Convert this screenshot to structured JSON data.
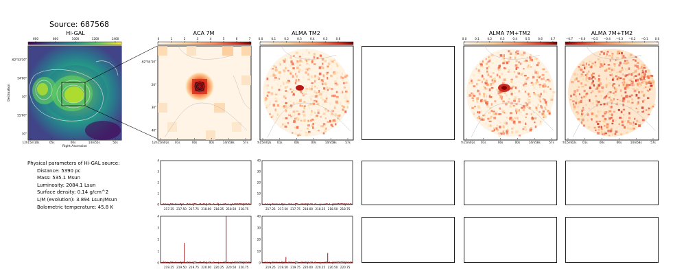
{
  "source_title": "Source: 687568",
  "panels": {
    "higal": {
      "title": "Hi-GAL",
      "cbar_ticks": [
        "600",
        "800",
        "1000",
        "1200",
        "1400"
      ],
      "yticks": [
        "-62°53'30\"",
        "54'00\"",
        "30\"",
        "55'00\"",
        "30\""
      ],
      "xticks": [
        "12h15m10s",
        "05s",
        "00s",
        "14m55s",
        "50s"
      ],
      "xlabel": "Right Ascension",
      "ylabel": "Declination",
      "colormap": "viridis"
    },
    "aca7m": {
      "title": "ACA 7M",
      "cbar_ticks": [
        "0",
        "1",
        "2",
        "3",
        "4",
        "5",
        "6",
        "7"
      ],
      "yticks": [
        "-62°54'10\"",
        "20\"",
        "30\"",
        "40\""
      ],
      "xticks": [
        "12h15m02s",
        "01s",
        "00s",
        "00s",
        "14m58s",
        "57s"
      ],
      "colormap": "OrRd"
    },
    "almatm2": {
      "title": "ALMA TM2",
      "cbar_ticks": [
        "0.0",
        "0.1",
        "0.2",
        "0.3",
        "0.4",
        "0.5",
        "0.6"
      ],
      "xticks": [
        "12h15m02s",
        "01s",
        "00s",
        "00s",
        "14m58s",
        "57s"
      ]
    },
    "alma7mtm2_a": {
      "title": "ALMA 7M+TM2",
      "cbar_ticks": [
        "0.0",
        "0.1",
        "0.2",
        "0.3",
        "0.4",
        "0.5",
        "0.6",
        "0.7"
      ],
      "xticks": [
        "12h15m02s",
        "01s",
        "00s",
        "00s",
        "14m58s",
        "57s"
      ]
    },
    "alma7mtm2_b": {
      "title": "ALMA 7M+TM2",
      "cbar_ticks": [
        "−0.7",
        "−0.6",
        "−0.5",
        "−0.4",
        "−0.3",
        "−0.2",
        "−0.1",
        "0.0"
      ],
      "xticks": [
        "12h15m02s",
        "01s",
        "00s",
        "00s",
        "14m58s",
        "57s"
      ]
    }
  },
  "physical_parameters": {
    "heading": "Physical parameters of Hi-GAL source:",
    "distance": "Distance: 5390 pc",
    "mass": "Mass: 535.1 Msun",
    "luminosity": "Luminosity: 2084.1 Lsun",
    "surface_density": "Surface density: 0.14 g/cm^2",
    "lm": "L/M (evolution): 3.894 Lsun/Msun",
    "tbol": "Bolometric temperature: 45.8 K"
  },
  "chart_data": [
    {
      "type": "line",
      "name": "spectrum-aca-row1",
      "x_ticks": [
        "217.25",
        "217.50",
        "217.75",
        "218.00",
        "218.25",
        "218.50",
        "218.75"
      ],
      "ylim": [
        0,
        4
      ],
      "y_ticks": [
        "0",
        "1",
        "2",
        "3",
        "4"
      ],
      "xlim": [
        217.08,
        218.9
      ],
      "baseline": 0.05,
      "peaks": [
        {
          "x": 218.22,
          "y": 0.15
        }
      ],
      "color": "#8b0000"
    },
    {
      "type": "line",
      "name": "spectrum-tm2-row1",
      "x_ticks": [
        "217.25",
        "217.50",
        "217.75",
        "218.00",
        "218.25",
        "218.50",
        "218.75"
      ],
      "ylim": [
        0,
        40
      ],
      "y_ticks": [
        "0",
        "10",
        "20",
        "30",
        "40"
      ],
      "xlim": [
        217.08,
        218.9
      ],
      "baseline": 0.5,
      "peaks": [],
      "color": "#8b0000"
    },
    {
      "type": "line",
      "name": "spectrum-aca-row2",
      "x_ticks": [
        "219.25",
        "219.50",
        "219.75",
        "220.00",
        "220.25",
        "220.50",
        "220.75"
      ],
      "ylim": [
        0,
        4
      ],
      "y_ticks": [
        "0",
        "1",
        "2",
        "3",
        "4"
      ],
      "xlim": [
        219.08,
        220.9
      ],
      "baseline": 0.05,
      "peaks": [
        {
          "x": 219.56,
          "y": 1.7
        },
        {
          "x": 220.4,
          "y": 4.0
        },
        {
          "x": 219.95,
          "y": 0.1
        }
      ],
      "color": "#8b0000"
    },
    {
      "type": "line",
      "name": "spectrum-tm2-row2",
      "x_ticks": [
        "219.25",
        "219.50",
        "219.75",
        "220.00",
        "220.25",
        "220.50",
        "220.75"
      ],
      "ylim": [
        0,
        40
      ],
      "y_ticks": [
        "0",
        "10",
        "20",
        "30",
        "40"
      ],
      "xlim": [
        219.08,
        220.9
      ],
      "baseline": 0.5,
      "peaks": [
        {
          "x": 219.56,
          "y": 5.0
        },
        {
          "x": 220.4,
          "y": 8.5
        }
      ],
      "color": "#8b0000"
    }
  ]
}
